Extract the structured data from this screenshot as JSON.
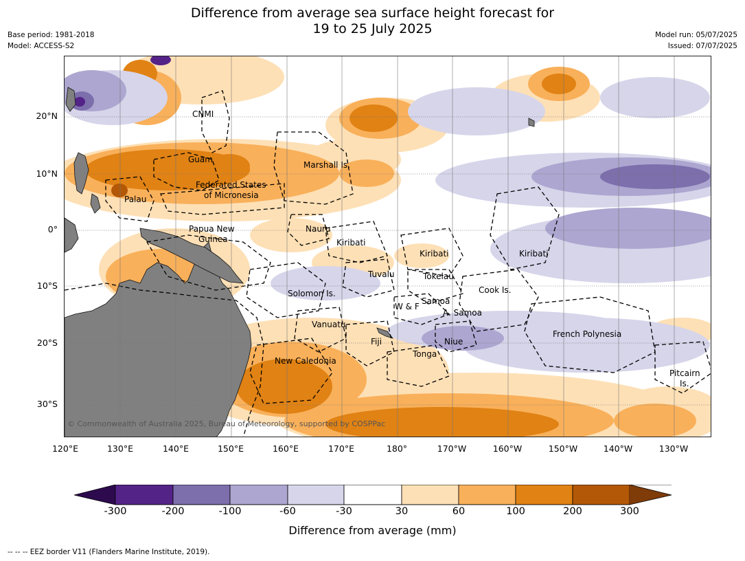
{
  "title": {
    "line1": "Difference from average sea surface height forecast for",
    "line2": "19 to 25 July 2025"
  },
  "meta_left": {
    "line1": "Base period: 1981-2018",
    "line2": "Model: ACCESS-S2"
  },
  "meta_right": {
    "line1": "Model run: 05/07/2025",
    "line2": "Issued: 07/07/2025"
  },
  "map": {
    "lat_labels": [
      "20°N",
      "10°N",
      "0°",
      "10°S",
      "20°S",
      "30°S"
    ],
    "lon_labels": [
      "120°E",
      "130°E",
      "140°E",
      "150°E",
      "160°E",
      "170°E",
      "180°",
      "170°W",
      "160°W",
      "150°W",
      "140°W",
      "130°W"
    ],
    "places": {
      "cnmi": "CNMI",
      "guam": "Guam",
      "marshall": "Marshall Is.",
      "fsm1": "Federated States",
      "fsm2": "of Micronesia",
      "palau": "Palau",
      "png1": "Papua New",
      "png2": "Guinea",
      "nauru": "Nauru",
      "kiribati_w": "Kiribati",
      "kiribati_c": "Kiribati",
      "kiribati_e": "Kiribati",
      "tuvalu": "Tuvalu",
      "tokelau": "Tokelau",
      "cook": "Cook Is.",
      "solomon": "Solomon Is.",
      "wf": "W & F",
      "samoa": "Samoa",
      "asamoa": "A. Samoa",
      "vanuatu": "Vanuatu",
      "fiji": "Fiji",
      "niue": "Niue",
      "french_polynesia": "French Polynesia",
      "tonga": "Tonga",
      "new_caledonia": "New Caledonia",
      "pitcairn1": "Pitcairn",
      "pitcairn2": "Is."
    },
    "copyright": "© Commonwealth of Australia 2025, Bureau of Meteorology, supported by COSPPac",
    "colors": {
      "land": "#808080",
      "gridline": "#777777"
    }
  },
  "colorbar": {
    "ticks": [
      "-300",
      "-200",
      "-100",
      "-60",
      "-30",
      "30",
      "60",
      "100",
      "200",
      "300"
    ],
    "colors": [
      "#2d0a4e",
      "#542388",
      "#7d6eac",
      "#aca6d0",
      "#d6d5ea",
      "#ffffff",
      "#fee0b6",
      "#f9b05a",
      "#e08214",
      "#b35806",
      "#7f3b08"
    ],
    "label": "Difference from average (mm)"
  },
  "footnote": "--  --  -- EEZ border V11 (Flanders Marine Institute, 2019)."
}
